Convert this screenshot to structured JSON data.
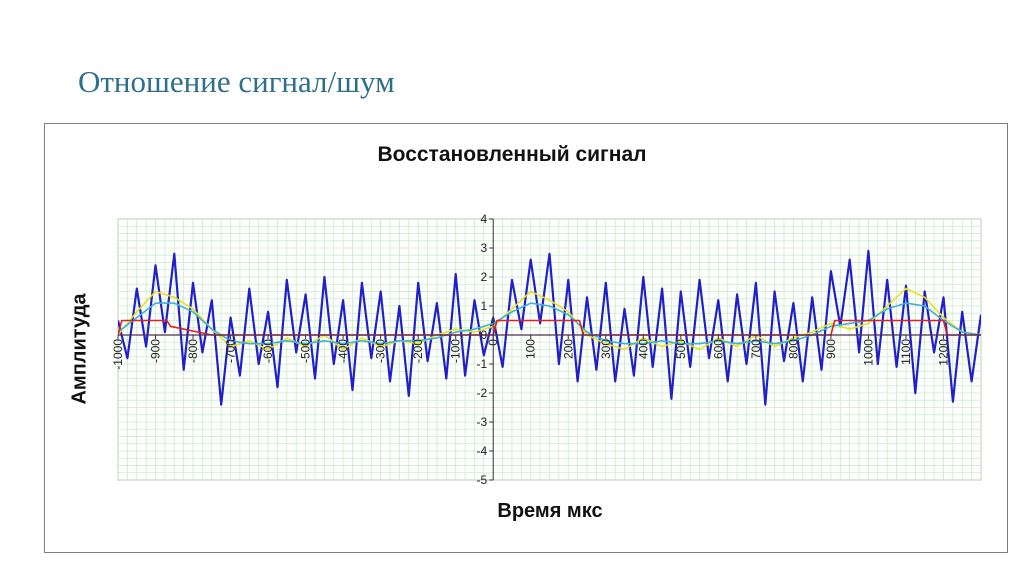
{
  "slide": {
    "title": "Отношение сигнал/шум"
  },
  "chart_data": {
    "type": "line",
    "title": "Восстановленный сигнал",
    "xlabel": "Время мкс",
    "ylabel": "Амплитуда",
    "xlim": [
      -1000,
      1300
    ],
    "ylim": [
      -5,
      4
    ],
    "yticks": [
      -5,
      -4,
      -3,
      -2,
      -1,
      0,
      1,
      2,
      3,
      4
    ],
    "xticks": [
      -1000,
      -900,
      -800,
      -700,
      -600,
      -500,
      -400,
      -300,
      -200,
      -100,
      0,
      100,
      200,
      300,
      400,
      500,
      600,
      700,
      800,
      900,
      1000,
      1100,
      1200
    ],
    "grid": true,
    "legend": "none",
    "series_note_colors": [
      "#1f1fcc",
      "#e8e020",
      "#3fb0d8",
      "#e02020",
      "#c020c0"
    ],
    "series": [
      {
        "color": "#1f1fcc",
        "x": [
          -1000,
          -975,
          -950,
          -925,
          -900,
          -875,
          -850,
          -825,
          -800,
          -775,
          -750,
          -725,
          -700,
          -675,
          -650,
          -625,
          -600,
          -575,
          -550,
          -525,
          -500,
          -475,
          -450,
          -425,
          -400,
          -375,
          -350,
          -325,
          -300,
          -275,
          -250,
          -225,
          -200,
          -175,
          -150,
          -125,
          -100,
          -75,
          -50,
          -25,
          0,
          25,
          50,
          75,
          100,
          125,
          150,
          175,
          200,
          225,
          250,
          275,
          300,
          325,
          350,
          375,
          400,
          425,
          450,
          475,
          500,
          525,
          550,
          575,
          600,
          625,
          650,
          675,
          700,
          725,
          750,
          775,
          800,
          825,
          850,
          875,
          900,
          925,
          950,
          975,
          1000,
          1025,
          1050,
          1075,
          1100,
          1125,
          1150,
          1175,
          1200,
          1225,
          1250,
          1275,
          1300
        ],
        "y": [
          0.5,
          -0.8,
          1.6,
          -0.4,
          2.4,
          0.1,
          2.8,
          -1.2,
          1.8,
          -0.6,
          1.2,
          -2.4,
          0.6,
          -1.4,
          1.6,
          -1.0,
          0.8,
          -1.8,
          1.9,
          -0.6,
          1.4,
          -1.5,
          2.0,
          -1.0,
          1.2,
          -1.9,
          1.8,
          -0.8,
          1.5,
          -1.6,
          1.0,
          -2.1,
          1.8,
          -0.9,
          1.1,
          -1.5,
          2.1,
          -1.4,
          1.2,
          -0.7,
          0.6,
          -1.1,
          1.9,
          0.2,
          2.6,
          0.4,
          2.8,
          -1.0,
          1.9,
          -1.6,
          1.3,
          -1.2,
          1.8,
          -1.6,
          0.9,
          -1.4,
          2.0,
          -1.1,
          1.6,
          -2.2,
          1.5,
          -1.1,
          1.9,
          -0.8,
          1.2,
          -1.6,
          1.4,
          -1.0,
          1.8,
          -2.4,
          1.5,
          -0.9,
          1.1,
          -1.6,
          1.3,
          -1.2,
          2.2,
          0.3,
          2.6,
          -0.6,
          2.9,
          -1.0,
          1.9,
          -1.1,
          1.7,
          -2.0,
          1.5,
          -0.6,
          1.3,
          -2.3,
          0.8,
          -1.6,
          0.7
        ]
      },
      {
        "color": "#e8e020",
        "x": [
          -1000,
          -950,
          -900,
          -850,
          -800,
          -750,
          -700,
          -650,
          -600,
          -550,
          -500,
          -450,
          -400,
          -350,
          -300,
          -250,
          -200,
          -150,
          -100,
          -50,
          0,
          50,
          100,
          150,
          200,
          250,
          300,
          350,
          400,
          450,
          500,
          550,
          600,
          650,
          700,
          750,
          800,
          850,
          900,
          950,
          1000,
          1050,
          1100,
          1150,
          1200,
          1250,
          1300
        ],
        "y": [
          0.0,
          0.8,
          1.5,
          1.3,
          0.9,
          0.2,
          -0.4,
          -0.2,
          -0.5,
          -0.1,
          -0.4,
          0.0,
          -0.5,
          -0.1,
          -0.4,
          -0.2,
          -0.3,
          0.0,
          0.2,
          0.1,
          0.3,
          0.9,
          1.5,
          1.2,
          0.8,
          0.0,
          -0.3,
          -0.5,
          -0.1,
          -0.4,
          -0.2,
          -0.5,
          -0.1,
          -0.4,
          0.0,
          -0.4,
          -0.1,
          0.1,
          0.4,
          0.2,
          0.4,
          1.0,
          1.6,
          1.3,
          0.6,
          0.1,
          0.0
        ]
      },
      {
        "color": "#3fb0d8",
        "x": [
          -1000,
          -950,
          -900,
          -850,
          -800,
          -750,
          -700,
          -650,
          -600,
          -550,
          -500,
          -450,
          -400,
          -350,
          -300,
          -250,
          -200,
          -150,
          -100,
          -50,
          0,
          50,
          100,
          150,
          200,
          250,
          300,
          350,
          400,
          450,
          500,
          550,
          600,
          650,
          700,
          750,
          800,
          850,
          900,
          950,
          1000,
          1050,
          1100,
          1150,
          1200,
          1250,
          1300
        ],
        "y": [
          0.1,
          0.6,
          1.1,
          1.1,
          0.8,
          0.2,
          -0.2,
          -0.3,
          -0.3,
          -0.2,
          -0.3,
          -0.2,
          -0.3,
          -0.2,
          -0.3,
          -0.2,
          -0.2,
          -0.1,
          0.1,
          0.2,
          0.4,
          0.8,
          1.1,
          1.0,
          0.7,
          0.1,
          -0.2,
          -0.3,
          -0.3,
          -0.2,
          -0.3,
          -0.3,
          -0.2,
          -0.3,
          -0.2,
          -0.3,
          -0.2,
          0.0,
          0.3,
          0.4,
          0.5,
          0.9,
          1.1,
          1.0,
          0.5,
          0.1,
          0.0
        ]
      },
      {
        "color": "#e02020",
        "x": [
          -1000,
          -990,
          -870,
          -860,
          -750,
          -100,
          0,
          10,
          230,
          240,
          900,
          910,
          1100,
          1200,
          1210,
          1300
        ],
        "y": [
          0.0,
          0.5,
          0.5,
          0.3,
          0.0,
          0.0,
          0.0,
          0.5,
          0.5,
          0.0,
          0.0,
          0.5,
          0.5,
          0.5,
          0.0,
          0.0
        ]
      },
      {
        "color": "#c020c0",
        "x": [
          -1000,
          1300
        ],
        "y": [
          0.0,
          0.0
        ]
      }
    ]
  }
}
